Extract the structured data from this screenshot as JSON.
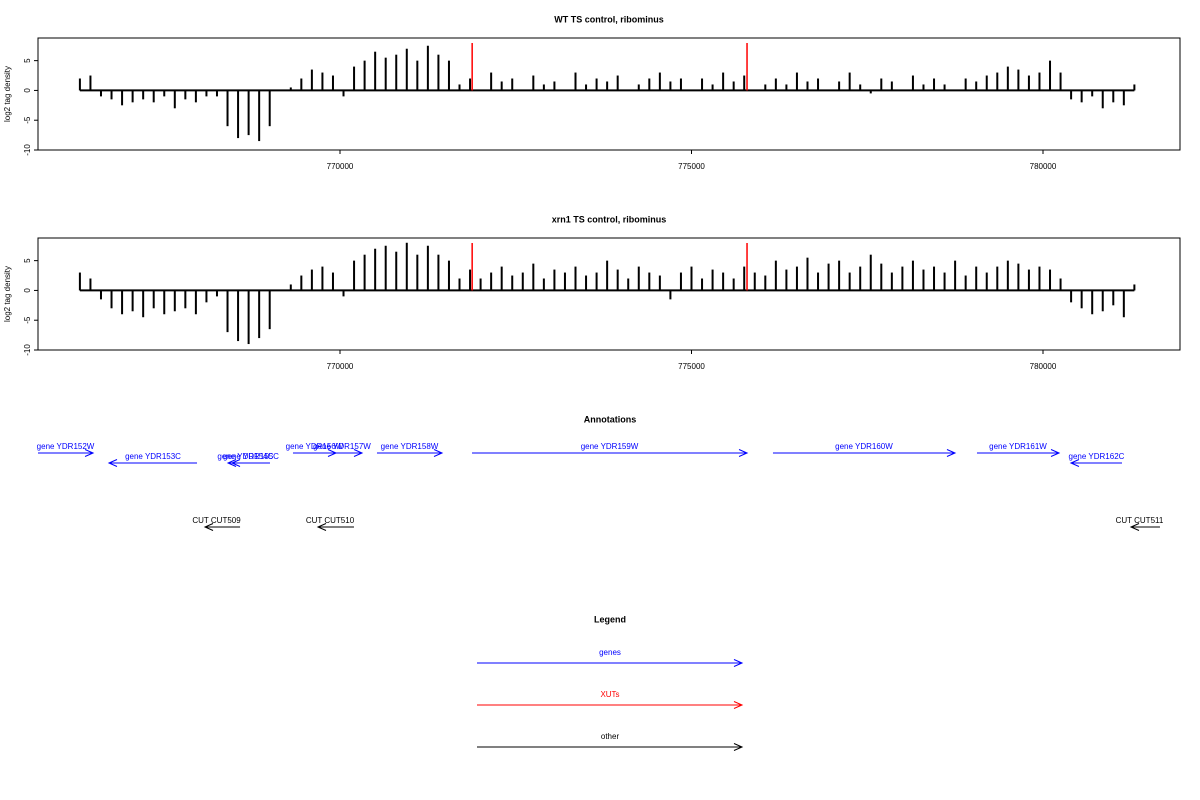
{
  "chart_data": [
    {
      "type": "bar",
      "title": "WT TS control, ribominus",
      "ylabel": "log2 tag density",
      "color": "#000000",
      "x": [
        766300,
        766450,
        766600,
        766750,
        766900,
        767050,
        767200,
        767350,
        767500,
        767650,
        767800,
        767950,
        768100,
        768250,
        768400,
        768550,
        768700,
        768850,
        769000,
        769150,
        769300,
        769450,
        769600,
        769750,
        769900,
        770050,
        770200,
        770350,
        770500,
        770650,
        770800,
        770950,
        771100,
        771250,
        771400,
        771550,
        771700,
        771850,
        772000,
        772150,
        772300,
        772450,
        772600,
        772750,
        772900,
        773050,
        773200,
        773350,
        773500,
        773650,
        773800,
        773950,
        774100,
        774250,
        774400,
        774550,
        774700,
        774850,
        775000,
        775150,
        775300,
        775450,
        775600,
        775750,
        775900,
        776050,
        776200,
        776350,
        776500,
        776650,
        776800,
        776950,
        777100,
        777250,
        777400,
        777550,
        777700,
        777850,
        778000,
        778150,
        778300,
        778450,
        778600,
        778750,
        778900,
        779050,
        779200,
        779350,
        779500,
        779650,
        779800,
        779950,
        780100,
        780250,
        780400,
        780550,
        780700,
        780850,
        781000,
        781150,
        781300
      ],
      "values": [
        2,
        2.5,
        -1,
        -1.5,
        -2.5,
        -2,
        -1.5,
        -2,
        -1,
        -3,
        -1.5,
        -2,
        -1,
        -1,
        -6,
        -8,
        -7.5,
        -8.5,
        -6,
        0,
        0.5,
        2,
        3.5,
        3,
        2.5,
        -1,
        4,
        5,
        6.5,
        5.5,
        6,
        7,
        5,
        7.5,
        6,
        5,
        1,
        2,
        0,
        3,
        1.5,
        2,
        0,
        2.5,
        1,
        1.5,
        0,
        3,
        1,
        2,
        1.5,
        2.5,
        0,
        1,
        2,
        3,
        1.5,
        2,
        0,
        2,
        1,
        3,
        1.5,
        2.5,
        0,
        1,
        2,
        1,
        3,
        1.5,
        2,
        0,
        1.5,
        3,
        1,
        -0.5,
        2,
        1.5,
        0,
        2.5,
        1,
        2,
        1,
        0,
        2,
        1.5,
        2.5,
        3,
        4,
        3.5,
        2.5,
        3,
        5,
        3,
        -1.5,
        -2,
        -1,
        -3,
        -2,
        -2.5,
        1
      ],
      "markers": {
        "color": "#ff0000",
        "x": [
          771880,
          775790
        ]
      },
      "xlim": [
        765704,
        781949
      ],
      "xticks": [
        770000,
        775000,
        780000
      ],
      "ylim": [
        -10,
        8.8
      ],
      "yticks": [
        -10,
        -5,
        0,
        5
      ]
    },
    {
      "type": "bar",
      "title": "xrn1 TS control, ribominus",
      "ylabel": "log2 tag density",
      "color": "#000000",
      "x": [
        766300,
        766450,
        766600,
        766750,
        766900,
        767050,
        767200,
        767350,
        767500,
        767650,
        767800,
        767950,
        768100,
        768250,
        768400,
        768550,
        768700,
        768850,
        769000,
        769150,
        769300,
        769450,
        769600,
        769750,
        769900,
        770050,
        770200,
        770350,
        770500,
        770650,
        770800,
        770950,
        771100,
        771250,
        771400,
        771550,
        771700,
        771850,
        772000,
        772150,
        772300,
        772450,
        772600,
        772750,
        772900,
        773050,
        773200,
        773350,
        773500,
        773650,
        773800,
        773950,
        774100,
        774250,
        774400,
        774550,
        774700,
        774850,
        775000,
        775150,
        775300,
        775450,
        775600,
        775750,
        775900,
        776050,
        776200,
        776350,
        776500,
        776650,
        776800,
        776950,
        777100,
        777250,
        777400,
        777550,
        777700,
        777850,
        778000,
        778150,
        778300,
        778450,
        778600,
        778750,
        778900,
        779050,
        779200,
        779350,
        779500,
        779650,
        779800,
        779950,
        780100,
        780250,
        780400,
        780550,
        780700,
        780850,
        781000,
        781150,
        781300
      ],
      "values": [
        3,
        2,
        -1.5,
        -3,
        -4,
        -3.5,
        -4.5,
        -3,
        -4,
        -3.5,
        -3,
        -4,
        -2,
        -1,
        -7,
        -8.5,
        -9,
        -8,
        -6.5,
        0,
        1,
        2.5,
        3.5,
        4,
        3,
        -1,
        5,
        6,
        7,
        7.5,
        6.5,
        8,
        6,
        7.5,
        6,
        5,
        2,
        3.5,
        2,
        3,
        4,
        2.5,
        3,
        4.5,
        2,
        3.5,
        3,
        4,
        2.5,
        3,
        5,
        3.5,
        2,
        4,
        3,
        2.5,
        -1.5,
        3,
        4,
        2,
        3.5,
        3,
        2,
        4,
        3,
        2.5,
        5,
        3.5,
        4,
        5.5,
        3,
        4.5,
        5,
        3,
        4,
        6,
        4.5,
        3,
        4,
        5,
        3.5,
        4,
        3,
        5,
        2.5,
        4,
        3,
        4,
        5,
        4.5,
        3.5,
        4,
        3.5,
        2,
        -2,
        -3,
        -4,
        -3.5,
        -2.5,
        -4.5,
        1
      ],
      "markers": {
        "color": "#ff0000",
        "x": [
          771880,
          775790
        ]
      },
      "xlim": [
        765704,
        781949
      ],
      "xticks": [
        770000,
        775000,
        780000
      ],
      "ylim": [
        -10,
        8.8
      ],
      "yticks": [
        -10,
        -5,
        0,
        5
      ]
    }
  ],
  "annotations": {
    "title": "Annotations",
    "genes": [
      {
        "label": "gene YDR152W",
        "start": 765704,
        "end": 766487
      },
      {
        "label": "gene YDR153C",
        "start": 767966,
        "end": 766714
      },
      {
        "label": "gene YDR154C",
        "start": 768900,
        "end": 768407
      },
      {
        "label": "gene YDR155C",
        "start": 769004,
        "end": 768464
      },
      {
        "label": "gene YDR156W",
        "start": 769331,
        "end": 769943
      },
      {
        "label": "gene YDR157W",
        "start": 769744,
        "end": 770313
      },
      {
        "label": "gene YDR158W",
        "start": 770526,
        "end": 771451
      },
      {
        "label": "gene YDR159W",
        "start": 771878,
        "end": 775790
      },
      {
        "label": "gene YDR160W",
        "start": 776159,
        "end": 778748
      },
      {
        "label": "gene YDR161W",
        "start": 779061,
        "end": 780228
      },
      {
        "label": "gene YDR162C",
        "start": 781124,
        "end": 780398
      }
    ],
    "other": [
      {
        "label": "CUT CUT509",
        "start": 768578,
        "end": 768080
      },
      {
        "label": "CUT CUT510",
        "start": 770199,
        "end": 769687
      },
      {
        "label": "CUT CUT511",
        "start": 781664,
        "end": 781252
      }
    ]
  },
  "legend": {
    "title": "Legend",
    "items": [
      {
        "label": "genes",
        "color": "#0000ff"
      },
      {
        "label": "XUTs",
        "color": "#ff0000"
      },
      {
        "label": "other",
        "color": "#000000"
      }
    ]
  }
}
